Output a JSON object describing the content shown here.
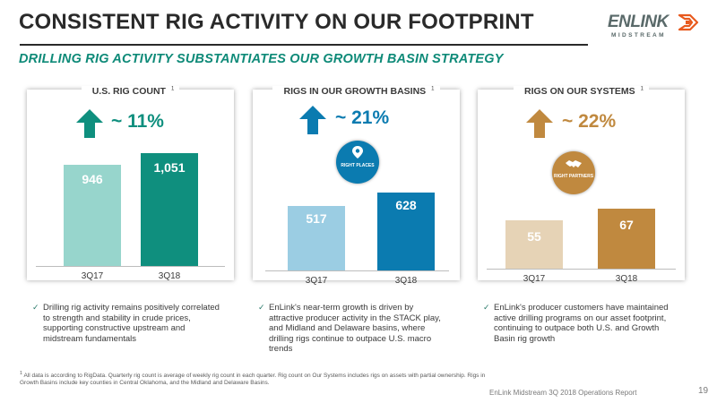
{
  "header": {
    "title": "CONSISTENT RIG ACTIVITY ON OUR FOOTPRINT",
    "subtitle": "DRILLING RIG ACTIVITY SUBSTANTIATES OUR GROWTH BASIN STRATEGY"
  },
  "logo": {
    "brand": "ENLINK",
    "sub": "MIDSTREAM"
  },
  "colors": {
    "teal": "#0f8f7e",
    "light_teal": "#97d5cc",
    "blue": "#0b7bb0",
    "light_blue": "#9bcde3",
    "gold": "#c0893f",
    "light_gold": "#e6d3b6",
    "title_green": "#0e8a78"
  },
  "panels": [
    {
      "title": "U.S. RIG COUNT",
      "footnote_mark": "1",
      "change": "~ 11%",
      "badge": null,
      "bullet": "Drilling rig activity remains positively correlated to strength and stability in crude prices, supporting constructive upstream and midstream fundamentals"
    },
    {
      "title": "RIGS IN OUR GROWTH BASINS",
      "footnote_mark": "1",
      "change": "~ 21%",
      "badge": "RIGHT PLACES",
      "bullet": "EnLink's near-term growth is driven by attractive producer activity in the STACK play, and Midland and Delaware basins, where drilling rigs continue to outpace U.S. macro trends"
    },
    {
      "title": "RIGS ON OUR SYSTEMS",
      "footnote_mark": "1",
      "change": "~ 22%",
      "badge": "RIGHT PARTNERS",
      "bullet": "EnLink's producer customers have maintained active drilling programs on our asset footprint, continuing to outpace both U.S. and Growth Basin rig growth"
    }
  ],
  "chart_data": [
    {
      "type": "bar",
      "title": "U.S. RIG COUNT",
      "categories": [
        "3Q17",
        "3Q18"
      ],
      "values": [
        946,
        1051
      ]
    },
    {
      "type": "bar",
      "title": "RIGS IN OUR GROWTH BASINS",
      "categories": [
        "3Q17",
        "3Q18"
      ],
      "values": [
        517,
        628
      ]
    },
    {
      "type": "bar",
      "title": "RIGS ON OUR SYSTEMS",
      "categories": [
        "3Q17",
        "3Q18"
      ],
      "values": [
        55,
        67
      ]
    }
  ],
  "footnote": {
    "mark": "1",
    "text": "All data is according to RigData. Quarterly rig count is average of weekly rig count in each quarter. Rig count on Our Systems includes rigs on assets with partial ownership. Rigs in Growth Basins include key counties in Central Oklahoma, and the Midland and Delaware Basins."
  },
  "footer": {
    "text": "EnLink Midstream 3Q 2018 Operations Report",
    "page": "19"
  }
}
